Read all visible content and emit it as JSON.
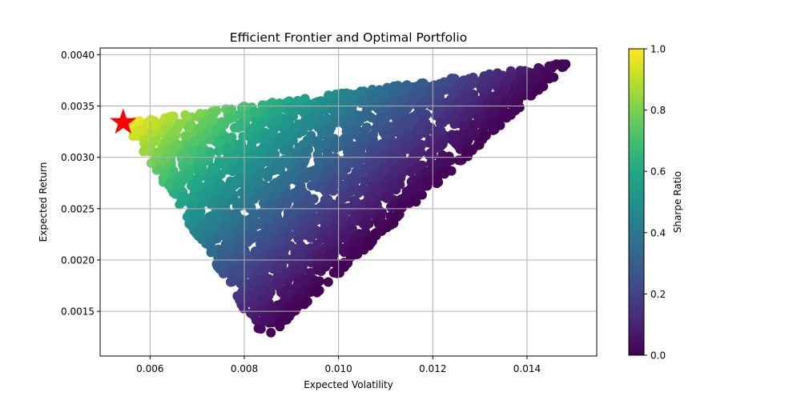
{
  "chart_data": {
    "type": "scatter",
    "title": "Efficient Frontier and Optimal Portfolio",
    "xlabel": "Expected Volatility",
    "ylabel": "Expected Return",
    "xlim": [
      0.00494,
      0.01548
    ],
    "ylim": [
      0.001065,
      0.004065
    ],
    "x_ticks": [
      0.006,
      0.008,
      0.01,
      0.012,
      0.014
    ],
    "x_tick_labels": [
      "0.006",
      "0.008",
      "0.010",
      "0.012",
      "0.014"
    ],
    "y_ticks": [
      0.0015,
      0.002,
      0.0025,
      0.003,
      0.0035,
      0.004
    ],
    "y_tick_labels": [
      "0.0015",
      "0.0020",
      "0.0025",
      "0.0030",
      "0.0035",
      "0.0040"
    ],
    "grid": true,
    "colormap": "viridis",
    "portfolio_region": {
      "min_variance_point": {
        "x": 0.00545,
        "y": 0.00334
      },
      "max_return_point": {
        "x": 0.01495,
        "y": 0.00393
      },
      "min_return_point": {
        "x": 0.00843,
        "y": 0.00121
      }
    },
    "series": [
      {
        "marker": "star",
        "color": "#ff0000",
        "points": [
          {
            "x": 0.00543,
            "y": 0.00334
          }
        ]
      }
    ],
    "colorbar": {
      "label": "Sharpe Ratio",
      "range": [
        0.0,
        1.0
      ],
      "ticks": [
        0.0,
        0.2,
        0.4,
        0.6,
        0.8,
        1.0
      ],
      "tick_labels": [
        "0.0",
        "0.2",
        "0.4",
        "0.6",
        "0.8",
        "1.0"
      ]
    }
  }
}
